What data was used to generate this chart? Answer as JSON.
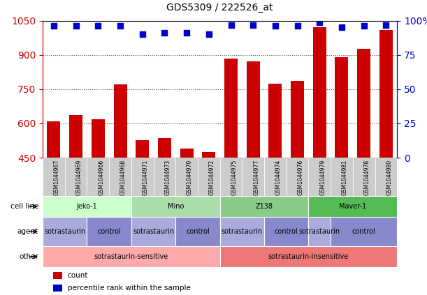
{
  "title": "GDS5309 / 222526_at",
  "samples": [
    "GSM1044967",
    "GSM1044969",
    "GSM1044966",
    "GSM1044968",
    "GSM1044971",
    "GSM1044973",
    "GSM1044970",
    "GSM1044972",
    "GSM1044975",
    "GSM1044977",
    "GSM1044974",
    "GSM1044976",
    "GSM1044979",
    "GSM1044981",
    "GSM1044978",
    "GSM1044980"
  ],
  "counts": [
    610,
    635,
    618,
    770,
    525,
    535,
    490,
    473,
    885,
    872,
    775,
    785,
    1020,
    890,
    928,
    1010
  ],
  "percentiles": [
    96,
    96,
    96,
    96,
    90,
    91,
    91,
    90,
    97,
    97,
    96,
    96,
    99,
    95,
    96,
    97
  ],
  "bar_color": "#cc0000",
  "dot_color": "#0000cc",
  "ylim_left": [
    450,
    1050
  ],
  "ylim_right": [
    0,
    100
  ],
  "yticks_left": [
    450,
    600,
    750,
    900,
    1050
  ],
  "yticks_right": [
    0,
    25,
    50,
    75,
    100
  ],
  "grid_color": "#000000",
  "bg_color": "#ffffff",
  "cell_line_row": {
    "label": "cell line",
    "groups": [
      {
        "name": "Jeko-1",
        "start": 0,
        "end": 3,
        "color": "#ccffcc"
      },
      {
        "name": "Mino",
        "start": 4,
        "end": 7,
        "color": "#aaddaa"
      },
      {
        "name": "Z138",
        "start": 8,
        "end": 11,
        "color": "#88cc88"
      },
      {
        "name": "Maver-1",
        "start": 12,
        "end": 15,
        "color": "#55bb55"
      }
    ]
  },
  "agent_row": {
    "label": "agent",
    "groups": [
      {
        "name": "sotrastaurin",
        "start": 0,
        "end": 1,
        "color": "#aaaadd"
      },
      {
        "name": "control",
        "start": 2,
        "end": 3,
        "color": "#8888cc"
      },
      {
        "name": "sotrastaurin",
        "start": 4,
        "end": 5,
        "color": "#aaaadd"
      },
      {
        "name": "control",
        "start": 6,
        "end": 7,
        "color": "#8888cc"
      },
      {
        "name": "sotrastaurin",
        "start": 8,
        "end": 9,
        "color": "#aaaadd"
      },
      {
        "name": "control",
        "start": 10,
        "end": 11,
        "color": "#8888cc"
      },
      {
        "name": "sotrastaurin",
        "start": 12,
        "end": 12,
        "color": "#aaaadd"
      },
      {
        "name": "control",
        "start": 13,
        "end": 15,
        "color": "#8888cc"
      }
    ]
  },
  "other_row": {
    "label": "other",
    "groups": [
      {
        "name": "sotrastaurin-sensitive",
        "start": 0,
        "end": 7,
        "color": "#ffaaaa"
      },
      {
        "name": "sotrastaurin-insensitive",
        "start": 8,
        "end": 15,
        "color": "#ee7777"
      }
    ]
  },
  "legend_items": [
    {
      "color": "#cc0000",
      "label": "count"
    },
    {
      "color": "#0000cc",
      "label": "percentile rank within the sample"
    }
  ],
  "tick_label_color": "#888888",
  "left_axis_color": "#cc0000",
  "right_axis_color": "#0000cc"
}
